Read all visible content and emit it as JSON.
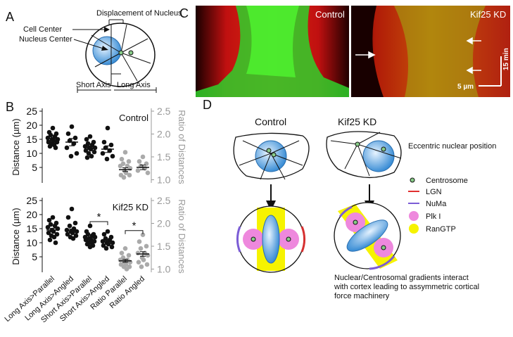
{
  "panel_a": {
    "letter": "A",
    "displacement": "Displacement of Nucleus",
    "cell_center": "Cell Center",
    "nucleus_center": "Nucleus Center",
    "short_axis": "Short Axis",
    "long_axis": "Long Axis"
  },
  "panel_b": {
    "letter": "B"
  },
  "panel_c": {
    "letter": "C",
    "left_label": "Control",
    "right_label": "Kif25 KD",
    "time_bar": "15 min",
    "scale_bar": "5 µm"
  },
  "panel_d": {
    "letter": "D",
    "control": "Control",
    "kd": "Kif25 KD",
    "eccentric": "Eccentric nuclear position",
    "legend": [
      "Centrosome",
      "LGN",
      "NuMa",
      "Plk I",
      "RanGTP"
    ],
    "caption": [
      "Nuclear/Centrosomal gradients interact",
      "with cortex leading to assymmetric cortical",
      "force machinery"
    ]
  },
  "chart_data": [
    {
      "type": "dot",
      "label": "Control",
      "ylabel": "Distance (µm)",
      "y2label": "Ratio of Distances",
      "categories": [
        null,
        null,
        null,
        null,
        null,
        null
      ],
      "axis": [
        "y",
        "y",
        "y",
        "y",
        "y2",
        "y2"
      ],
      "colors": [
        "#111111",
        "#111111",
        "#111111",
        "#111111",
        "#aaaaaa",
        "#aaaaaa"
      ],
      "values": [
        [
          19,
          17.5,
          17,
          16.5,
          16,
          15.5,
          15,
          15,
          14.5,
          14,
          14,
          13.5,
          13,
          12.5,
          12
        ],
        [
          19.5,
          17,
          15.5,
          14.5,
          13.5,
          12,
          10,
          9
        ],
        [
          16,
          15,
          14,
          13.5,
          13,
          12.5,
          12,
          12,
          11.5,
          11,
          10.5,
          10,
          9,
          8.5
        ],
        [
          19,
          14,
          13,
          12,
          11,
          10,
          9,
          8
        ],
        [
          1.6,
          1.45,
          1.4,
          1.35,
          1.3,
          1.3,
          1.25,
          1.2,
          1.15,
          1.1,
          1.1,
          1.05
        ],
        [
          1.5,
          1.4,
          1.35,
          1.3,
          1.25,
          1.2,
          1.15
        ]
      ],
      "means": [
        14.6,
        14,
        12,
        11.5,
        1.22,
        1.27
      ],
      "sem": [
        0.6,
        1.3,
        0.6,
        1.2,
        0.04,
        0.05
      ],
      "ylim": [
        -0.5,
        25
      ],
      "yticks": [
        5,
        10,
        15,
        20,
        25
      ],
      "y2lim": [
        0.93,
        2.5
      ],
      "y2ticks": [
        {
          "value": 1,
          "label": "1.0"
        },
        {
          "value": 1.5,
          "label": "1.5"
        },
        {
          "value": 2,
          "label": "2.0"
        },
        2.5
      ],
      "pairs": [],
      "pair_labels": []
    },
    {
      "type": "dot",
      "label": "Kif25 KD",
      "ylabel": "Distance (µm)",
      "y2label": "Ratio of Distances",
      "categories": [
        "Long Axis>Parallel",
        "Long Axis>Angled",
        "Short Axis>Parallel",
        "Short Axis>Angled",
        "Ratio Parallel",
        "Ratio Angled"
      ],
      "axis": [
        "y",
        "y",
        "y",
        "y",
        "y2",
        "y2"
      ],
      "colors": [
        "#111111",
        "#111111",
        "#111111",
        "#111111",
        "#aaaaaa",
        "#aaaaaa"
      ],
      "values": [
        [
          19,
          18,
          17,
          16.5,
          16,
          15.5,
          15,
          14.5,
          14,
          13.5,
          13,
          12.5,
          12,
          11,
          10
        ],
        [
          22,
          19,
          17,
          16,
          15,
          14.5,
          14,
          14,
          13.5,
          13,
          12.5,
          12,
          11.5
        ],
        [
          16,
          14,
          13,
          13,
          12.5,
          12,
          12,
          11.5,
          11,
          11,
          10.5,
          10,
          10,
          9.5,
          9,
          8.5
        ],
        [
          14,
          13,
          12,
          11.5,
          11,
          10.5,
          10,
          10,
          9.5,
          9,
          8.5,
          8
        ],
        [
          1.45,
          1.35,
          1.3,
          1.25,
          1.2,
          1.2,
          1.15,
          1.15,
          1.1,
          1.1,
          1.05,
          1.05,
          1
        ],
        [
          1.75,
          1.6,
          1.5,
          1.45,
          1.35,
          1.35,
          1.3,
          1.25,
          1.2,
          1.15,
          1.1,
          1.05
        ]
      ],
      "means": [
        14.5,
        14.2,
        11.5,
        10.5,
        1.18,
        1.33
      ],
      "sem": [
        0.6,
        0.7,
        0.4,
        0.4,
        0.03,
        0.05
      ],
      "ylim": [
        -0.5,
        25
      ],
      "yticks": [
        5,
        10,
        15,
        20,
        25
      ],
      "y2lim": [
        0.93,
        2.5
      ],
      "y2ticks": [
        {
          "value": 1,
          "label": "1.0"
        },
        {
          "value": 1.5,
          "label": "1.5"
        },
        {
          "value": 2,
          "label": "2.0"
        },
        2.5
      ],
      "pairs": [
        [
          2,
          3
        ],
        [
          4,
          5
        ]
      ],
      "pair_labels": [
        "*",
        "*"
      ]
    }
  ]
}
